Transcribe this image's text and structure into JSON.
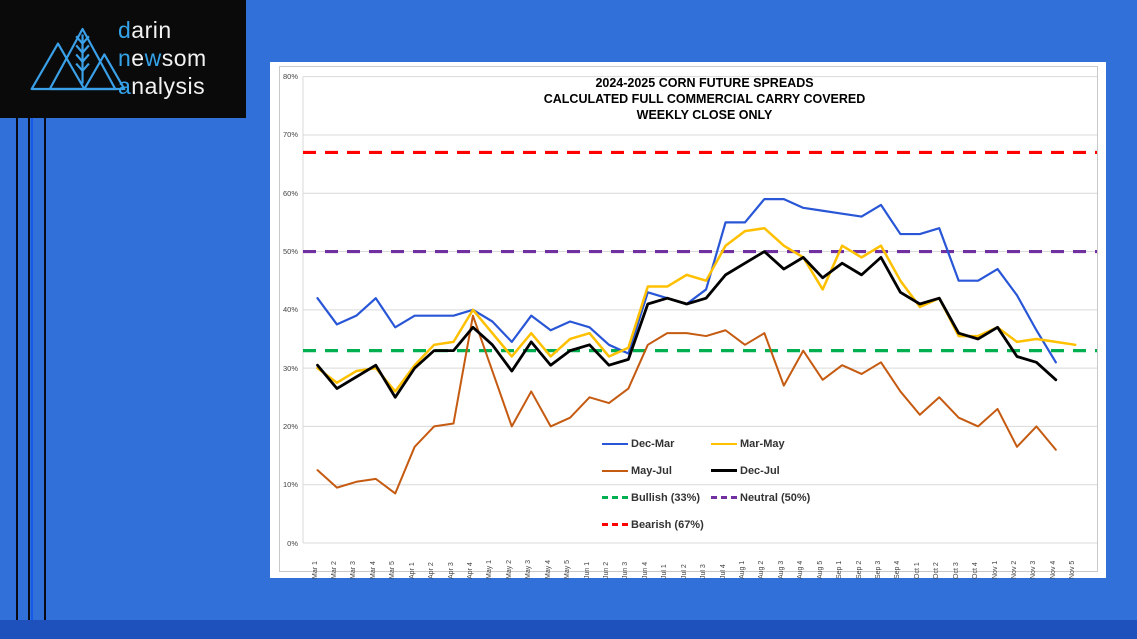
{
  "page": {
    "background_color": "#3170d8",
    "bottom_bar_color": "#1f51bd",
    "stripe_colors": {
      "dark": "#0a0a14",
      "bright": "#1658e8"
    }
  },
  "logo": {
    "d": "d",
    "arin": "arin",
    "n": "n",
    "e": "e",
    "w": "w",
    "som": "som",
    "a": "a",
    "nalysis": "nalysis",
    "accent_color": "#35a3ea"
  },
  "chart_data": {
    "type": "line",
    "title_lines": [
      "2024-2025 CORN FUTURE SPREADS",
      "CALCULATED FULL COMMERCIAL CARRY COVERED",
      "WEEKLY CLOSE ONLY"
    ],
    "categories": [
      "Mar 1",
      "Mar 2",
      "Mar 3",
      "Mar 4",
      "Mar 5",
      "Apr 1",
      "Apr 2",
      "Apr 3",
      "Apr 4",
      "May 1",
      "May 2",
      "May 3",
      "May 4",
      "May 5",
      "Jun 1",
      "Jun 2",
      "Jun 3",
      "Jun 4",
      "Jul 1",
      "Jul 2",
      "Jul 3",
      "Jul 4",
      "Aug 1",
      "Aug 2",
      "Aug 3",
      "Aug 4",
      "Aug 5",
      "Sep 1",
      "Sep 2",
      "Sep 3",
      "Sep 4",
      "Oct 1",
      "Oct 2",
      "Oct 3",
      "Oct 4",
      "Nov 1",
      "Nov 2",
      "Nov 3",
      "Nov 4",
      "Nov 5"
    ],
    "y_axis": {
      "min": 0,
      "max": 80,
      "step": 10,
      "tick_suffix": "%",
      "grid": true
    },
    "series": [
      {
        "name": "Dec-Mar",
        "color": "#2856d6",
        "width": 2.2,
        "values": [
          42,
          37.5,
          39,
          42,
          37,
          39,
          39,
          39,
          40,
          38,
          34.5,
          39,
          36.5,
          38,
          37,
          34,
          32.5,
          43,
          42,
          41,
          43.5,
          55,
          55,
          59,
          59,
          57.5,
          57,
          56.5,
          56,
          58,
          53,
          53,
          54,
          45,
          45,
          47,
          42.5,
          36.5,
          31,
          null
        ]
      },
      {
        "name": "Mar-May",
        "color": "#FFC000",
        "width": 2.5,
        "values": [
          30,
          27.5,
          29.5,
          30,
          26,
          30.5,
          34,
          34.5,
          40,
          36,
          32,
          36,
          32,
          35,
          36,
          32,
          33.5,
          44,
          44,
          46,
          45,
          51,
          53.5,
          54,
          51,
          49,
          43.5,
          51,
          49,
          51,
          45,
          40.5,
          42,
          35.5,
          35.5,
          37,
          34.5,
          35,
          34.5,
          34
        ]
      },
      {
        "name": "May-Jul",
        "color": "#C55A11",
        "width": 2,
        "values": [
          12.5,
          9.5,
          10.5,
          11,
          8.5,
          16.5,
          20,
          20.5,
          39,
          29.5,
          20,
          26,
          20,
          21.5,
          25,
          24,
          26.5,
          34,
          36,
          36,
          35.5,
          36.5,
          34,
          36,
          27,
          33,
          28,
          30.5,
          29,
          31,
          26,
          22,
          25,
          21.5,
          20,
          23,
          16.5,
          20,
          16,
          null
        ]
      },
      {
        "name": "Dec-Jul",
        "color": "#000000",
        "width": 2.8,
        "values": [
          30.5,
          26.5,
          28.5,
          30.5,
          25,
          30,
          33,
          33,
          37,
          34,
          29.5,
          34.5,
          30.5,
          33,
          34,
          30.5,
          31.5,
          41,
          42,
          41,
          42,
          46,
          48,
          50,
          47,
          49,
          45.5,
          48,
          46,
          49,
          43,
          41,
          42,
          36,
          35,
          37,
          32,
          31,
          28,
          null
        ]
      }
    ],
    "reference_lines": [
      {
        "label": "Bullish (33%)",
        "value": 33,
        "color": "#00B050"
      },
      {
        "label": "Neutral (50%)",
        "value": 50,
        "color": "#7030A0"
      },
      {
        "label": "Bearish (67%)",
        "value": 67,
        "color": "#FF0000"
      }
    ],
    "legend": {
      "columns": [
        [
          "Dec-Mar",
          "May-Jul",
          "Bullish (33%)",
          "Bearish (67%)"
        ],
        [
          "Mar-May",
          "Dec-Jul",
          "Neutral (50%)"
        ]
      ],
      "position": "inside-bottom-center"
    }
  }
}
